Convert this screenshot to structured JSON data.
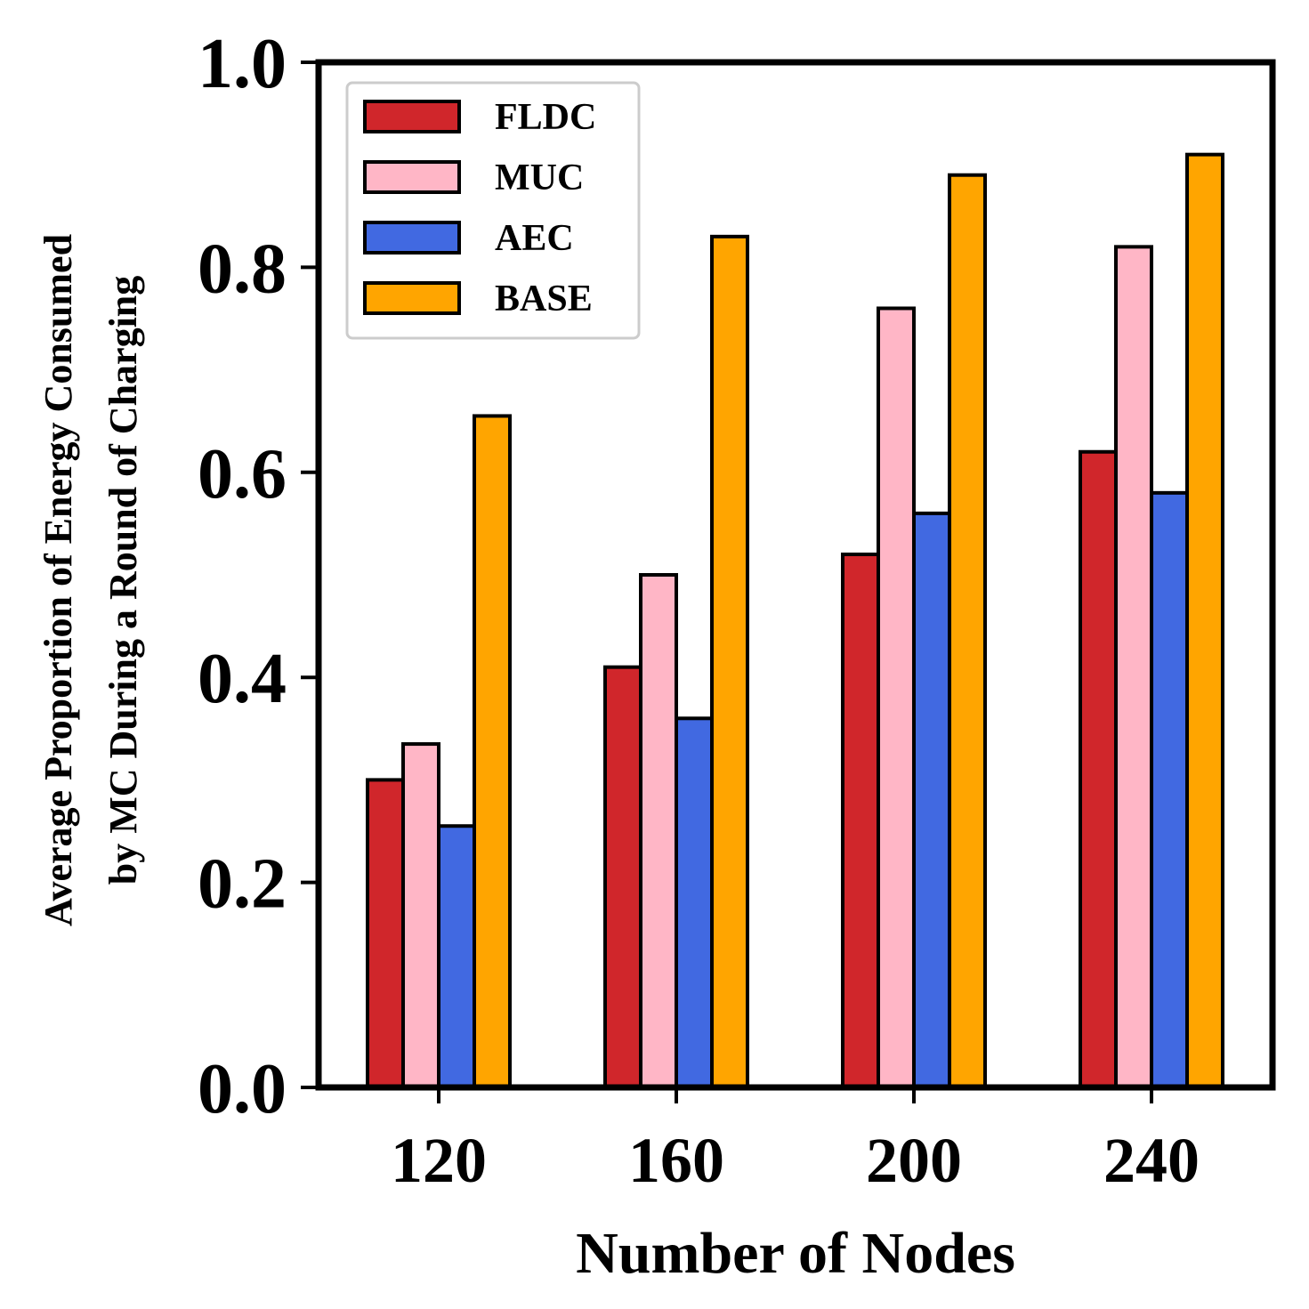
{
  "chart_data": {
    "type": "bar",
    "title": "",
    "xlabel": "Number of Nodes",
    "ylabel_line1": "Average Proportion of Energy Consumed",
    "ylabel_line2": "by MC During a Round of Charging",
    "ylim": [
      0,
      1.0
    ],
    "yticks": [
      0.0,
      0.2,
      0.4,
      0.6,
      0.8,
      1.0
    ],
    "ytick_labels": [
      "0.0",
      "0.2",
      "0.4",
      "0.6",
      "0.8",
      "1.0"
    ],
    "categories": [
      "120",
      "160",
      "200",
      "240"
    ],
    "legend_position": "top-left",
    "series": [
      {
        "name": "FLDC",
        "color": "#d0262b",
        "values": [
          0.3,
          0.41,
          0.52,
          0.62
        ]
      },
      {
        "name": "MUC",
        "color": "#ffb6c6",
        "values": [
          0.335,
          0.5,
          0.76,
          0.82
        ]
      },
      {
        "name": "AEC",
        "color": "#4169e1",
        "values": [
          0.255,
          0.36,
          0.56,
          0.58
        ]
      },
      {
        "name": "BASE",
        "color": "#ffa500",
        "values": [
          0.655,
          0.83,
          0.89,
          0.91
        ]
      }
    ]
  }
}
